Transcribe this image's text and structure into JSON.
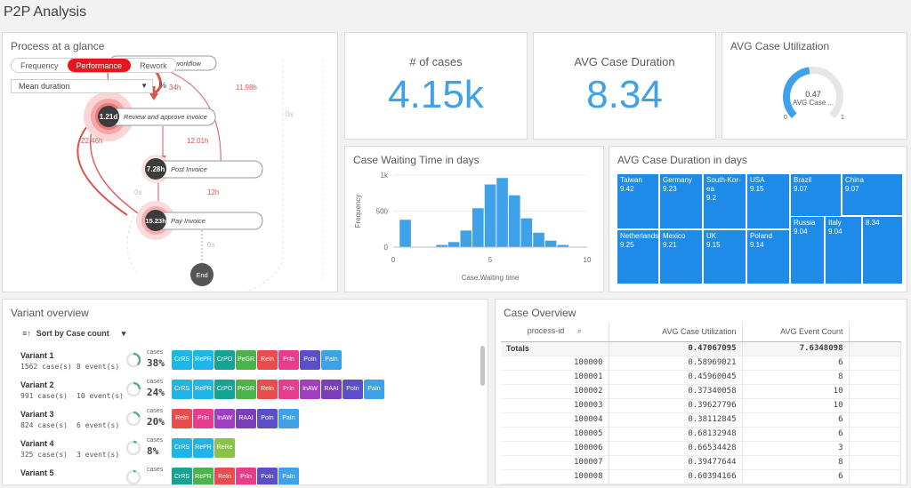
{
  "app": {
    "title": "P2P Analysis"
  },
  "process": {
    "title": "Process at a glance",
    "modes": [
      "Frequency",
      "Performance",
      "Rework"
    ],
    "active_mode": "Performance",
    "measure": "Mean duration",
    "percent": "%",
    "nodes": [
      {
        "value": "1.21d",
        "label": "Review and approve invoice"
      },
      {
        "value": "7.28h",
        "label": "Post Invoice"
      },
      {
        "value": "15.23h",
        "label": "Pay Invoice"
      },
      {
        "value": "End"
      }
    ],
    "partial_label": "l workflow",
    "edges": [
      "34h",
      "11.98h",
      "22.46h",
      "12.01h",
      "12h",
      "0s",
      "0s",
      "0s"
    ]
  },
  "kpi_cases": {
    "label": "# of cases",
    "value": "4.15k"
  },
  "kpi_duration": {
    "label": "AVG Case Duration",
    "value": "8.34"
  },
  "kpi_util": {
    "label": "AVG Case Utilization",
    "gauge_value": "0.47",
    "gauge_caption": "AVG Case ...",
    "min": "0",
    "max": "1",
    "fraction": 0.47
  },
  "waiting": {
    "title": "Case Waiting Time in days",
    "chart_data": {
      "type": "bar",
      "title": "Case Waiting Time in days",
      "xlabel": "Case.Waiting time",
      "ylabel": "Frequency",
      "x_ticks": [
        "0",
        "5",
        "10"
      ],
      "y_ticks": [
        "0",
        "500",
        "1k"
      ],
      "xlim": [
        0,
        10
      ],
      "ylim": [
        0,
        1000
      ],
      "bin_width": 0.625,
      "bins_start": [
        0.31,
        0.94,
        1.56,
        2.19,
        2.81,
        3.44,
        4.06,
        4.69,
        5.31,
        5.94,
        6.56,
        7.19,
        7.81,
        8.44,
        9.06
      ],
      "values": [
        380,
        0,
        0,
        30,
        70,
        230,
        540,
        870,
        960,
        720,
        400,
        200,
        90,
        30,
        5
      ],
      "color": "#3fa1e8"
    }
  },
  "treemap": {
    "title": "AVG Case Duration in days",
    "cells": [
      {
        "name": "Taiwan",
        "value": "9.42"
      },
      {
        "name": "Germany",
        "value": "9.23"
      },
      {
        "name": "South-Kor-ea",
        "value": "9.2"
      },
      {
        "name": "USA",
        "value": "9.15"
      },
      {
        "name": "Brazil",
        "value": "9.07"
      },
      {
        "name": "China",
        "value": "9.07"
      },
      {
        "name": "Netherlands",
        "value": "9.25"
      },
      {
        "name": "Mexico",
        "value": "9.21"
      },
      {
        "name": "UK",
        "value": "9.15"
      },
      {
        "name": "Poland",
        "value": "9.14"
      },
      {
        "name": "Russia",
        "value": "9.04"
      },
      {
        "name": "Italy",
        "value": "9.04"
      },
      {
        "name": "",
        "value": "8.34"
      }
    ],
    "color": "#1f8be8"
  },
  "variants": {
    "title": "Variant overview",
    "sort_label": "Sort by Case count",
    "cases_label": "cases",
    "items": [
      {
        "name": "Variant 1",
        "cases": "1562 case(s)",
        "events": "8 event(s)",
        "pct": "38%",
        "fraction": 0.38,
        "chips": [
          [
            "CrRS",
            "#1fb5e8"
          ],
          [
            "RePR",
            "#1fb5e8"
          ],
          [
            "CrPO",
            "#16a394"
          ],
          [
            "PeGR",
            "#4cb34c"
          ],
          [
            "ReIn",
            "#e84c4c"
          ],
          [
            "PrIn",
            "#e83c8c"
          ],
          [
            "PoIn",
            "#5a4fc8"
          ],
          [
            "PaIn",
            "#3fa1e8"
          ]
        ]
      },
      {
        "name": "Variant 2",
        "cases": "991 case(s)",
        "events": "10 event(s)",
        "pct": "24%",
        "fraction": 0.24,
        "chips": [
          [
            "CrRS",
            "#1fb5e8"
          ],
          [
            "RePR",
            "#1fb5e8"
          ],
          [
            "CrPO",
            "#16a394"
          ],
          [
            "PeGR",
            "#4cb34c"
          ],
          [
            "ReIn",
            "#e84c4c"
          ],
          [
            "PrIn",
            "#e83c8c"
          ],
          [
            "InAW",
            "#a040c0"
          ],
          [
            "RAAI",
            "#7a3eb8"
          ],
          [
            "PoIn",
            "#5a4fc8"
          ],
          [
            "PaIn",
            "#3fa1e8"
          ]
        ]
      },
      {
        "name": "Variant 3",
        "cases": "824 case(s)",
        "events": "6 event(s)",
        "pct": "20%",
        "fraction": 0.2,
        "chips": [
          [
            "ReIn",
            "#e84c4c"
          ],
          [
            "PrIn",
            "#e83c8c"
          ],
          [
            "InAW",
            "#a040c0"
          ],
          [
            "RAAI",
            "#7a3eb8"
          ],
          [
            "PoIn",
            "#5a4fc8"
          ],
          [
            "PaIn",
            "#3fa1e8"
          ]
        ]
      },
      {
        "name": "Variant 4",
        "cases": "325 case(s)",
        "events": "3 event(s)",
        "pct": "8%",
        "fraction": 0.08,
        "chips": [
          [
            "CrRS",
            "#1fb5e8"
          ],
          [
            "RePR",
            "#1fb5e8"
          ],
          [
            "ReRe",
            "#8bc34a"
          ]
        ]
      },
      {
        "name": "Variant 5",
        "cases": "",
        "events": "",
        "pct": "",
        "fraction": 0.06,
        "chips": [
          [
            "CrRS",
            "#16a394"
          ],
          [
            "RePR",
            "#4cb34c"
          ],
          [
            "ReIn",
            "#e84c4c"
          ],
          [
            "PrIn",
            "#e83c8c"
          ],
          [
            "PoIn",
            "#5a4fc8"
          ],
          [
            "PaIn",
            "#3fa1e8"
          ]
        ]
      }
    ]
  },
  "case_overview": {
    "title": "Case Overview",
    "columns": [
      "process-id",
      "AVG Case Utilization",
      "AVG Event Count"
    ],
    "totals": [
      "Totals",
      "0.47067095",
      "7.6348098"
    ],
    "rows": [
      [
        "100000",
        "0.58969021",
        "6"
      ],
      [
        "100001",
        "0.45960045",
        "8"
      ],
      [
        "100002",
        "0.37340058",
        "10"
      ],
      [
        "100003",
        "0.39627796",
        "10"
      ],
      [
        "100004",
        "0.38112845",
        "6"
      ],
      [
        "100005",
        "0.68132948",
        "6"
      ],
      [
        "100006",
        "0.66534428",
        "3"
      ],
      [
        "100007",
        "0.39477644",
        "8"
      ],
      [
        "100008",
        "0.60394166",
        "6"
      ]
    ]
  }
}
